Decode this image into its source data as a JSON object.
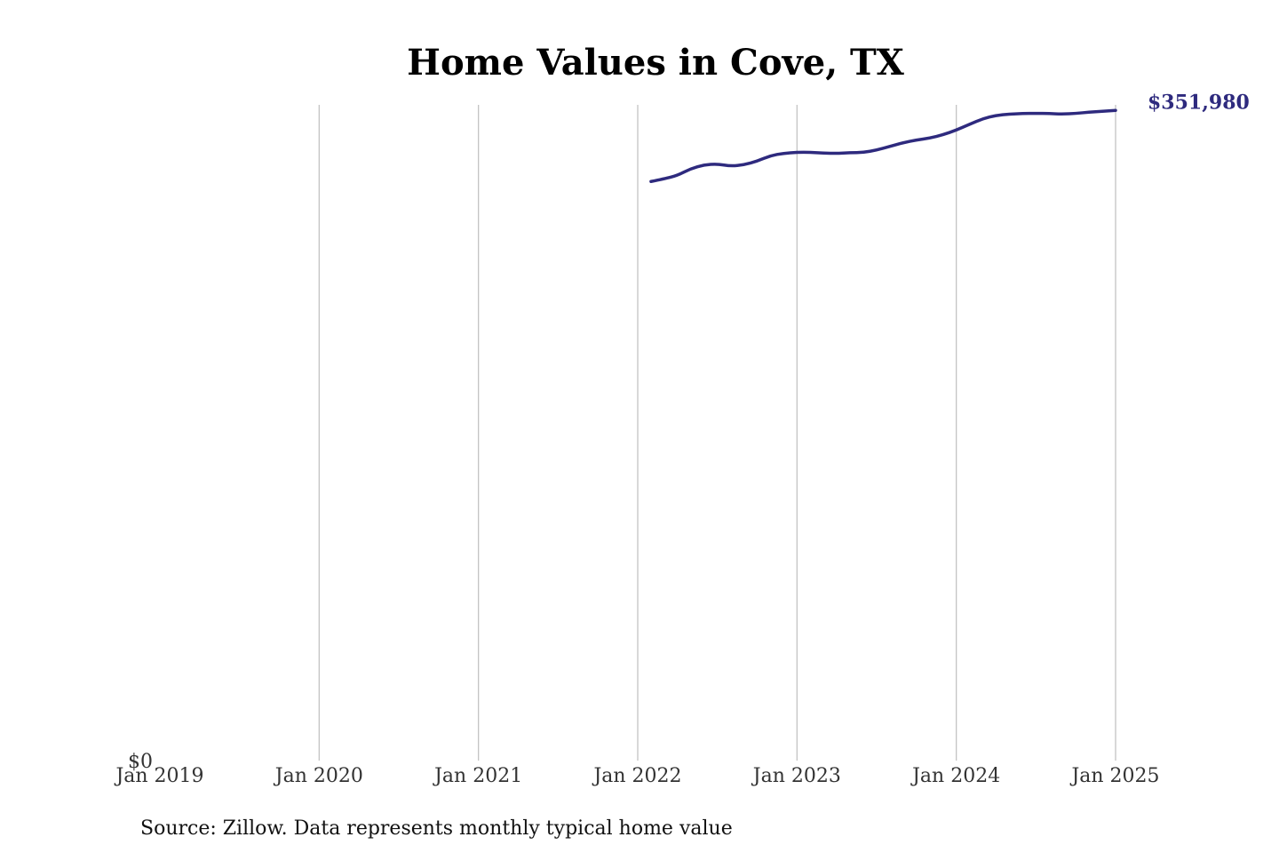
{
  "title": "Home Values in Cove, TX",
  "source_note": "Source: Zillow. Data represents monthly typical home value",
  "colors": {
    "series": "#2e2a7e",
    "grid": "#c4c4c4",
    "title": "#000000",
    "text": "#333333"
  },
  "chart_data": {
    "type": "line",
    "title": "Home Values in Cove, TX",
    "xlabel": "",
    "ylabel": "",
    "x_ticks": [
      "Jan 2019",
      "Jan 2020",
      "Jan 2021",
      "Jan 2022",
      "Jan 2023",
      "Jan 2024",
      "Jan 2025"
    ],
    "y_ticks": [
      {
        "value": 0,
        "label": "$0"
      }
    ],
    "xlim": [
      "2019-01",
      "2025-01"
    ],
    "ylim": [
      0,
      355000
    ],
    "grid": "vertical",
    "end_label": "$351,980",
    "series": [
      {
        "points": [
          {
            "x": "2022-02",
            "y": 313500
          },
          {
            "x": "2022-03",
            "y": 315000
          },
          {
            "x": "2022-04",
            "y": 316800
          },
          {
            "x": "2022-05",
            "y": 320500
          },
          {
            "x": "2022-06",
            "y": 322500
          },
          {
            "x": "2022-07",
            "y": 323000
          },
          {
            "x": "2022-08",
            "y": 321800
          },
          {
            "x": "2022-09",
            "y": 322500
          },
          {
            "x": "2022-10",
            "y": 324500
          },
          {
            "x": "2022-11",
            "y": 327500
          },
          {
            "x": "2022-12",
            "y": 328800
          },
          {
            "x": "2023-01",
            "y": 329300
          },
          {
            "x": "2023-02",
            "y": 329300
          },
          {
            "x": "2023-03",
            "y": 328900
          },
          {
            "x": "2023-04",
            "y": 328700
          },
          {
            "x": "2023-05",
            "y": 329100
          },
          {
            "x": "2023-06",
            "y": 329200
          },
          {
            "x": "2023-07",
            "y": 330500
          },
          {
            "x": "2023-08",
            "y": 332500
          },
          {
            "x": "2023-09",
            "y": 334500
          },
          {
            "x": "2023-10",
            "y": 336000
          },
          {
            "x": "2023-11",
            "y": 337000
          },
          {
            "x": "2023-12",
            "y": 338800
          },
          {
            "x": "2024-01",
            "y": 341300
          },
          {
            "x": "2024-02",
            "y": 344500
          },
          {
            "x": "2024-03",
            "y": 347500
          },
          {
            "x": "2024-04",
            "y": 349300
          },
          {
            "x": "2024-05",
            "y": 350000
          },
          {
            "x": "2024-06",
            "y": 350300
          },
          {
            "x": "2024-07",
            "y": 350400
          },
          {
            "x": "2024-08",
            "y": 350300
          },
          {
            "x": "2024-09",
            "y": 350000
          },
          {
            "x": "2024-10",
            "y": 350400
          },
          {
            "x": "2024-11",
            "y": 351000
          },
          {
            "x": "2024-12",
            "y": 351500
          },
          {
            "x": "2025-01",
            "y": 351980
          }
        ]
      }
    ]
  }
}
